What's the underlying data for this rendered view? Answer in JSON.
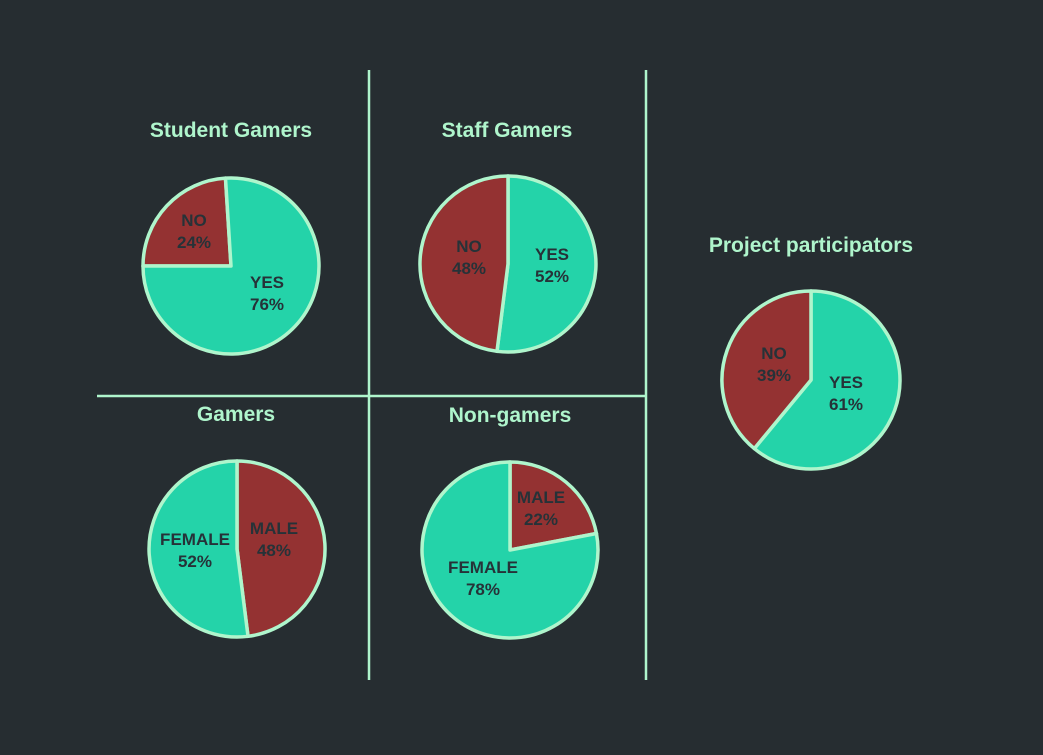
{
  "theme": {
    "background": "#262d31",
    "accent": "#aff5cc",
    "slice_colors": {
      "green": "#24d3a9",
      "red": "#943232"
    },
    "label_color": "#263238"
  },
  "chart_data": [
    {
      "type": "pie",
      "title": "Student Gamers",
      "slices": [
        {
          "label": "NO",
          "value": 24,
          "display": "24%",
          "color": "#943232"
        },
        {
          "label": "YES",
          "value": 76,
          "display": "76%",
          "color": "#24d3a9"
        }
      ]
    },
    {
      "type": "pie",
      "title": "Staff Gamers",
      "slices": [
        {
          "label": "YES",
          "value": 52,
          "display": "52%",
          "color": "#24d3a9"
        },
        {
          "label": "NO",
          "value": 48,
          "display": "48%",
          "color": "#943232"
        }
      ]
    },
    {
      "type": "pie",
      "title": "Gamers",
      "slices": [
        {
          "label": "MALE",
          "value": 48,
          "display": "48%",
          "color": "#943232"
        },
        {
          "label": "FEMALE",
          "value": 52,
          "display": "52%",
          "color": "#24d3a9"
        }
      ]
    },
    {
      "type": "pie",
      "title": "Non-gamers",
      "slices": [
        {
          "label": "MALE",
          "value": 22,
          "display": "22%",
          "color": "#943232"
        },
        {
          "label": "FEMALE",
          "value": 78,
          "display": "78%",
          "color": "#24d3a9"
        }
      ]
    },
    {
      "type": "pie",
      "title": "Project participators",
      "slices": [
        {
          "label": "YES",
          "value": 61,
          "display": "61%",
          "color": "#24d3a9"
        },
        {
          "label": "NO",
          "value": 39,
          "display": "39%",
          "color": "#943232"
        }
      ]
    }
  ]
}
